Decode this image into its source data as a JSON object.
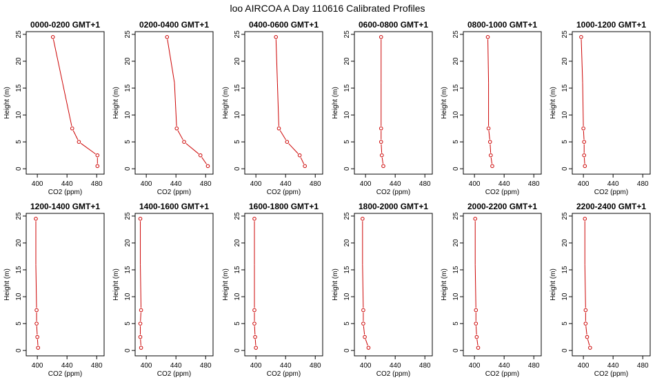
{
  "chart_data": {
    "type": "line",
    "title": "loo AIRCOA A  Day 110616  Calibrated Profiles",
    "xlabel": "CO2 (ppm)",
    "ylabel": "Height (m)",
    "xlim": [
      385,
      490
    ],
    "ylim": [
      -1,
      25.5
    ],
    "x_ticks": [
      400,
      440,
      480
    ],
    "y_ticks": [
      0,
      5,
      10,
      15,
      20,
      25
    ],
    "heights": [
      0.5,
      2.5,
      5,
      7.5,
      16,
      24.5
    ],
    "marker_heights": [
      0.5,
      2.5,
      5,
      7.5,
      24.5
    ],
    "colors": {
      "series": "#cc0000",
      "axis": "#000000"
    },
    "panels": [
      {
        "title": "0000-0200 GMT+1",
        "values": [
          481,
          481,
          456,
          447,
          434,
          421
        ]
      },
      {
        "title": "0200-0400 GMT+1",
        "values": [
          483,
          473,
          451,
          441,
          438,
          428
        ]
      },
      {
        "title": "0400-0600 GMT+1",
        "values": [
          466,
          459,
          442,
          431,
          429,
          427
        ]
      },
      {
        "title": "0600-0800 GMT+1",
        "values": [
          424,
          422,
          421,
          421,
          421,
          421
        ]
      },
      {
        "title": "0800-1000 GMT+1",
        "values": [
          424,
          422,
          421,
          419,
          419,
          418
        ]
      },
      {
        "title": "1000-1200 GMT+1",
        "values": [
          402,
          401,
          401,
          400,
          399,
          397
        ]
      },
      {
        "title": "1200-1400 GMT+1",
        "values": [
          401,
          400,
          399,
          399,
          398,
          398
        ]
      },
      {
        "title": "1400-1600 GMT+1",
        "values": [
          393,
          392,
          392,
          393,
          392,
          392
        ]
      },
      {
        "title": "1600-1800 GMT+1",
        "values": [
          400,
          399,
          398,
          398,
          398,
          398
        ]
      },
      {
        "title": "1800-2000 GMT+1",
        "values": [
          404,
          399,
          397,
          397,
          396,
          396
        ]
      },
      {
        "title": "2000-2200 GMT+1",
        "values": [
          405,
          403,
          402,
          402,
          401,
          401
        ]
      },
      {
        "title": "2200-2400 GMT+1",
        "values": [
          409,
          405,
          403,
          403,
          402,
          402
        ]
      }
    ]
  }
}
